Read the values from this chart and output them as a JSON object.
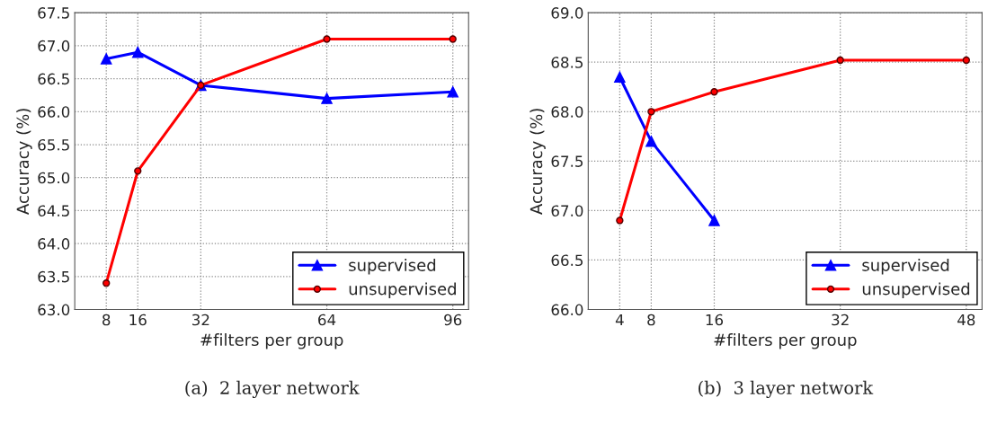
{
  "chart_data": [
    {
      "type": "line",
      "title": "(a)  2 layer network",
      "xlabel": "#filters per group",
      "ylabel": "Accuracy (%)",
      "x": [
        8,
        16,
        32,
        64,
        96
      ],
      "xlim": [
        0,
        100
      ],
      "xticks": [
        8,
        16,
        32,
        64,
        96
      ],
      "ylim": [
        63.0,
        67.5
      ],
      "yticks": [
        {
          "value": 63.0,
          "label": "63.0"
        },
        {
          "value": 63.5,
          "label": "63.5"
        },
        {
          "value": 64.0,
          "label": "64.0"
        },
        {
          "value": 64.5,
          "label": "64.5"
        },
        {
          "value": 65.0,
          "label": "65.0"
        },
        {
          "value": 65.5,
          "label": "65.5"
        },
        {
          "value": 66.0,
          "label": "66.0"
        },
        {
          "value": 66.5,
          "label": "66.5"
        },
        {
          "value": 67.0,
          "label": "67.0"
        },
        {
          "value": 67.5,
          "label": "67.5"
        }
      ],
      "grid": true,
      "legend": "bottom right",
      "series": [
        {
          "name": "supervised",
          "color": "#0000ff",
          "marker": "triangle",
          "values": [
            66.8,
            66.9,
            66.4,
            66.2,
            66.3
          ]
        },
        {
          "name": "unsupervised",
          "color": "#ff0000",
          "marker": "circle",
          "values": [
            63.4,
            65.1,
            66.4,
            67.1,
            67.1
          ]
        }
      ]
    },
    {
      "type": "line",
      "title": "(b)  3 layer network",
      "xlabel": "#filters per group",
      "ylabel": "Accuracy (%)",
      "x": [
        4,
        8,
        16,
        32,
        48
      ],
      "xlim": [
        0,
        50
      ],
      "xticks": [
        4,
        8,
        16,
        32,
        48
      ],
      "ylim": [
        66.0,
        69.0
      ],
      "yticks": [
        {
          "value": 66.0,
          "label": "66.0"
        },
        {
          "value": 66.5,
          "label": "66.5"
        },
        {
          "value": 67.0,
          "label": "67.0"
        },
        {
          "value": 67.5,
          "label": "67.5"
        },
        {
          "value": 68.0,
          "label": "68.0"
        },
        {
          "value": 68.5,
          "label": "68.5"
        },
        {
          "value": 69.0,
          "label": "69.0"
        }
      ],
      "grid": true,
      "legend": "bottom right",
      "series": [
        {
          "name": "supervised",
          "color": "#0000ff",
          "marker": "triangle",
          "values": [
            68.35,
            67.7,
            66.9,
            null,
            null
          ]
        },
        {
          "name": "unsupervised",
          "color": "#ff0000",
          "marker": "circle",
          "values": [
            66.9,
            68.0,
            68.2,
            68.52,
            68.52
          ]
        }
      ]
    }
  ]
}
